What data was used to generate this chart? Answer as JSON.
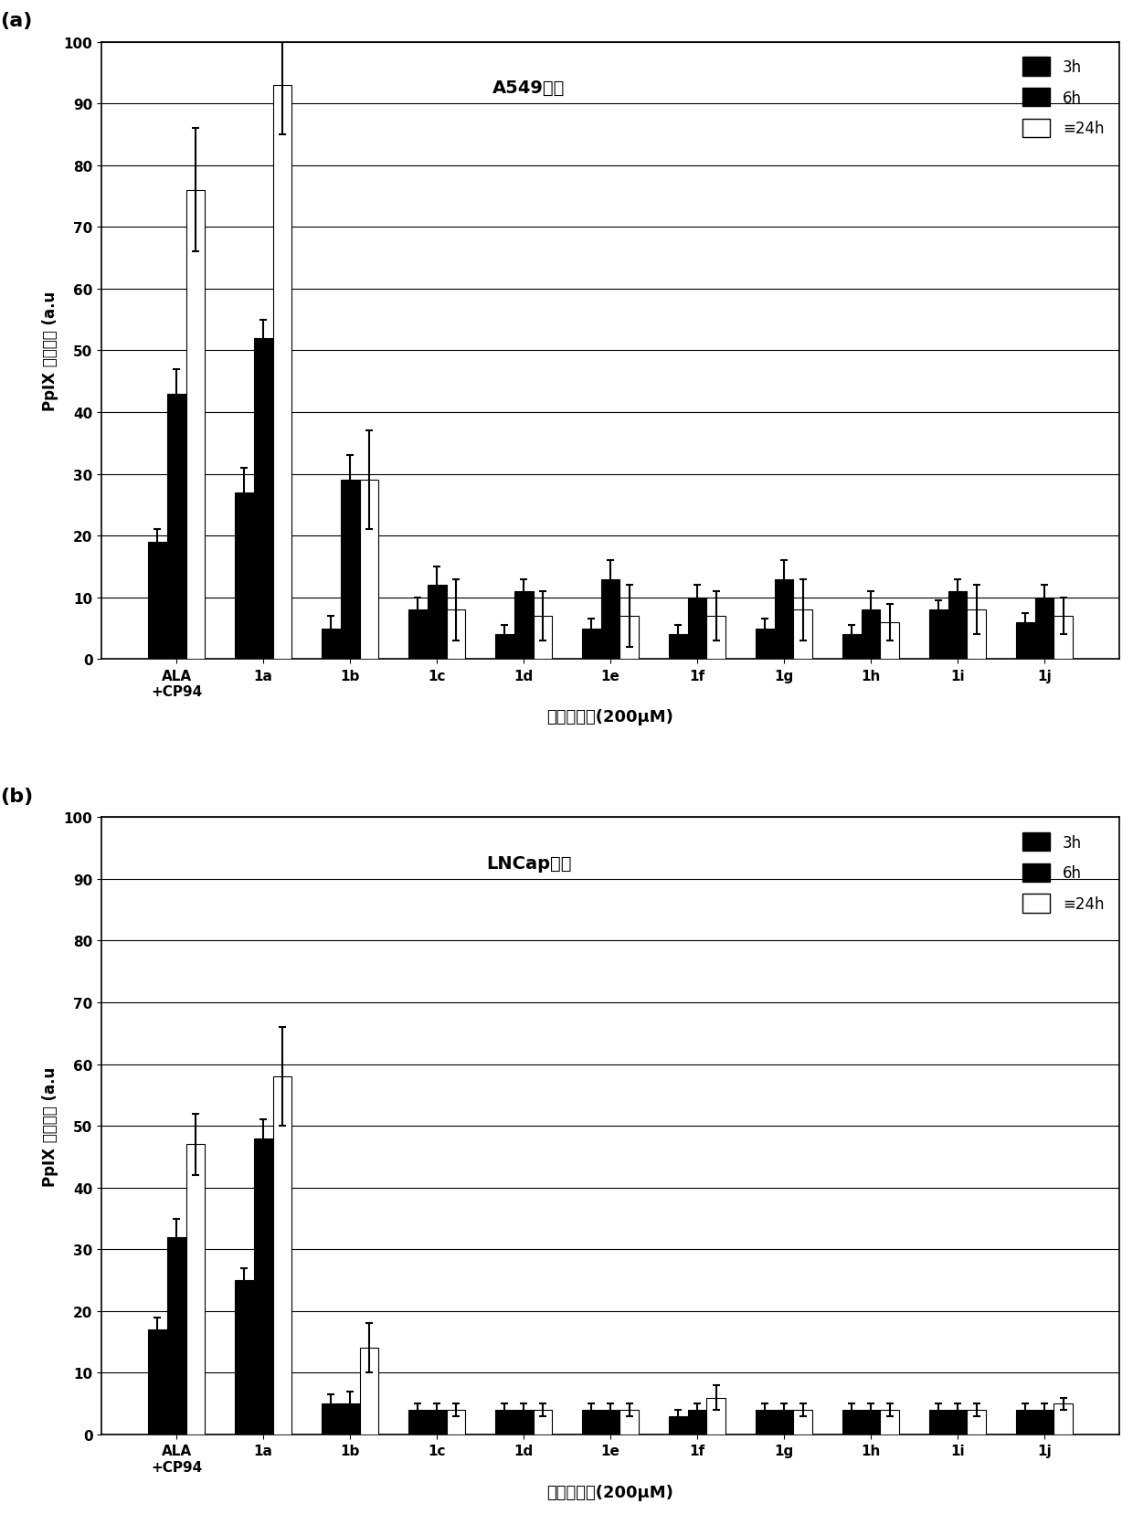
{
  "categories": [
    "ALA\n+CP94",
    "1a",
    "1b",
    "1c",
    "1d",
    "1e",
    "1f",
    "1g",
    "1h",
    "1i",
    "1j"
  ],
  "subplot_a": {
    "title": "A549细胞",
    "series_3h": [
      19,
      27,
      5,
      8,
      4,
      5,
      4,
      5,
      4,
      8,
      6
    ],
    "series_6h": [
      43,
      52,
      29,
      12,
      11,
      13,
      10,
      13,
      8,
      11,
      10
    ],
    "series_24h": [
      76,
      93,
      29,
      8,
      7,
      7,
      7,
      8,
      6,
      8,
      7
    ],
    "err_3h": [
      2,
      4,
      2,
      2,
      1.5,
      1.5,
      1.5,
      1.5,
      1.5,
      1.5,
      1.5
    ],
    "err_6h": [
      4,
      3,
      4,
      3,
      2,
      3,
      2,
      3,
      3,
      2,
      2
    ],
    "err_24h": [
      10,
      8,
      8,
      5,
      4,
      5,
      4,
      5,
      3,
      4,
      3
    ]
  },
  "subplot_b": {
    "title": "LNCap细胞",
    "series_3h": [
      17,
      25,
      5,
      4,
      4,
      4,
      3,
      4,
      4,
      4,
      4
    ],
    "series_6h": [
      32,
      48,
      5,
      4,
      4,
      4,
      4,
      4,
      4,
      4,
      4
    ],
    "series_24h": [
      47,
      58,
      14,
      4,
      4,
      4,
      6,
      4,
      4,
      4,
      5
    ],
    "err_3h": [
      2,
      2,
      1.5,
      1,
      1,
      1,
      1,
      1,
      1,
      1,
      1
    ],
    "err_6h": [
      3,
      3,
      2,
      1,
      1,
      1,
      1,
      1,
      1,
      1,
      1
    ],
    "err_24h": [
      5,
      8,
      4,
      1,
      1,
      1,
      2,
      1,
      1,
      1,
      1
    ]
  },
  "ylabel": "PpIX 荧光强度 (a.u",
  "xlabel": "化合物浓度(200μM)",
  "ylim": [
    0,
    100
  ],
  "yticks": [
    0,
    10,
    20,
    30,
    40,
    50,
    60,
    70,
    80,
    90,
    100
  ],
  "legend_labels": [
    "3h",
    "6h",
    "≡24h"
  ],
  "bar_width": 0.22,
  "panel_a_label": "(a)",
  "panel_b_label": "(b)"
}
